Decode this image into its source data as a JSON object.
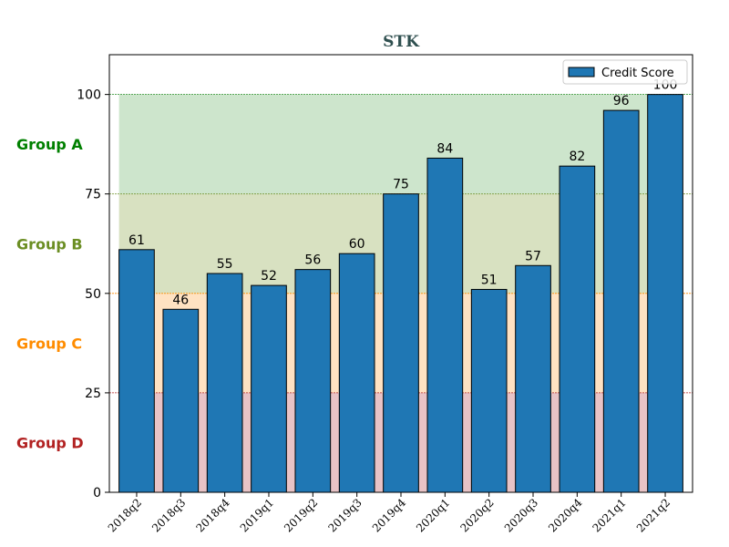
{
  "chart_data": {
    "type": "bar",
    "title": "STK",
    "xlabel": "",
    "ylabel": "",
    "categories": [
      "2018q2",
      "2018q3",
      "2018q4",
      "2019q1",
      "2019q2",
      "2019q3",
      "2019q4",
      "2020q1",
      "2020q2",
      "2020q3",
      "2020q4",
      "2021q1",
      "2021q2"
    ],
    "series": [
      {
        "name": "Credit Score",
        "values": [
          61,
          46,
          55,
          52,
          56,
          60,
          75,
          84,
          51,
          57,
          82,
          96,
          100
        ],
        "color": "#1f77b4"
      }
    ],
    "ylim": [
      0,
      110
    ],
    "yticks": [
      0,
      25,
      50,
      75,
      100
    ],
    "legend": {
      "position": "top-right"
    },
    "grid": false,
    "bands": [
      {
        "label": "Group D",
        "from": 0,
        "to": 25,
        "fill": "#e8c3c6",
        "line": "#b22222",
        "label_color": "#b22222"
      },
      {
        "label": "Group C",
        "from": 25,
        "to": 50,
        "fill": "#ffe2c2",
        "line": "#ff8c00",
        "label_color": "#ff8c00"
      },
      {
        "label": "Group B",
        "from": 50,
        "to": 75,
        "fill": "#d8e1c1",
        "line": "#6b8e23",
        "label_color": "#6b8e23"
      },
      {
        "label": "Group A",
        "from": 75,
        "to": 100,
        "fill": "#cde5cc",
        "line": "#228b22",
        "label_color": "#008000"
      }
    ]
  }
}
